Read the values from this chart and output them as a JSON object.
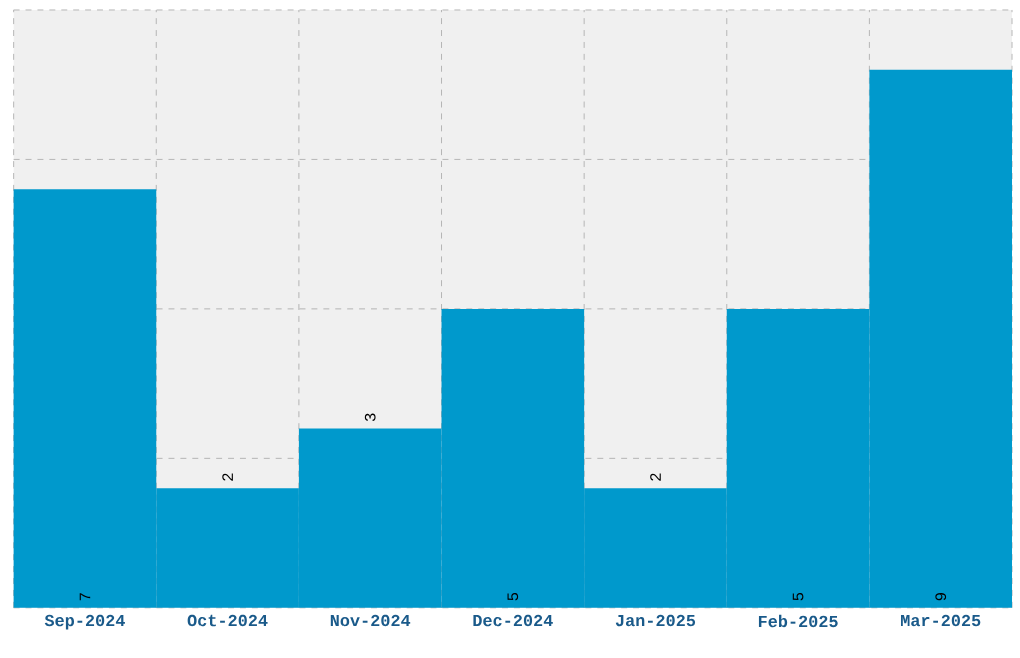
{
  "chart_data": {
    "type": "bar",
    "categories": [
      "Sep-2024",
      "Oct-2024",
      "Nov-2024",
      "Dec-2024",
      "Jan-2025",
      "Feb-2025",
      "Mar-2025"
    ],
    "values": [
      7,
      2,
      3,
      5,
      2,
      5,
      9
    ],
    "color": "#0099cc",
    "ylim": [
      0,
      10
    ],
    "yticks": [
      {
        "value": 0,
        "label": null
      },
      {
        "value": 2.5,
        "label": null
      },
      {
        "value": 5,
        "label": null
      },
      {
        "value": 7.5,
        "label": null
      },
      {
        "value": 10,
        "label": null
      }
    ],
    "grid": true,
    "data_labels": true,
    "tick_labels": "x"
  }
}
